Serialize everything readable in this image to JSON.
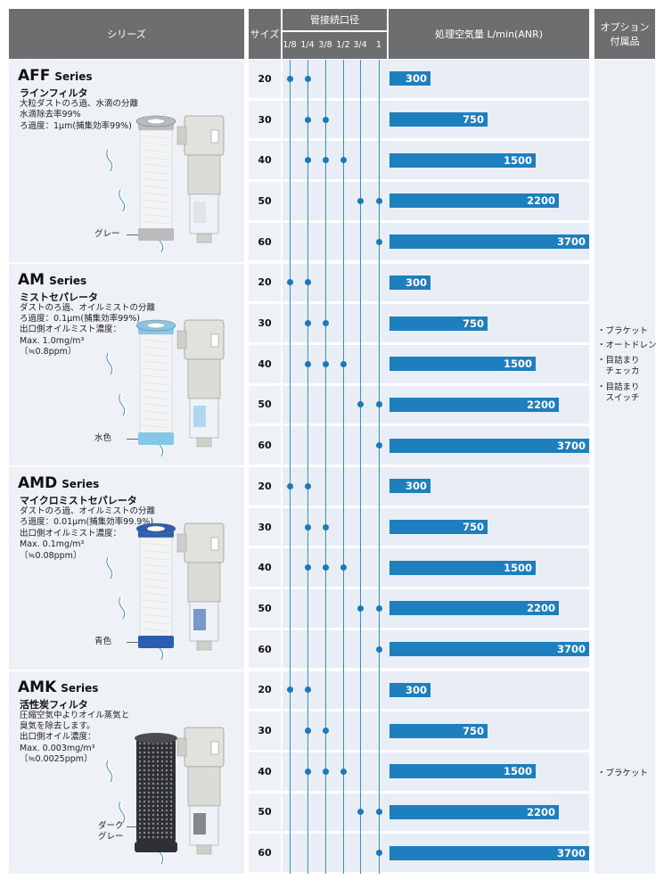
{
  "header": {
    "series": "シリーズ",
    "size": "サイズ",
    "pipe": "管接続口径",
    "pipe_sizes": [
      "1/8",
      "1/4",
      "3/8",
      "1/2",
      "3/4",
      "1"
    ],
    "flow": "処理空気量 L/min(ANR)",
    "option_line1": "オプション",
    "option_line2": "付属品"
  },
  "series": [
    {
      "name": "AFF",
      "suffix": "Series",
      "subtitle": "ラインフィルタ",
      "desc": [
        "大粒ダストのろ過、水滴の分離",
        "水滴除去率99%",
        "ろ過度：1μm(捕集効率99%)"
      ],
      "element_color_label": "グレー",
      "element_color": "#b9bbbd",
      "sizes": [
        {
          "size": "20",
          "ports": [
            "1/8",
            "1/4"
          ],
          "flow": "300"
        },
        {
          "size": "30",
          "ports": [
            "1/4",
            "3/8"
          ],
          "flow": "750"
        },
        {
          "size": "40",
          "ports": [
            "1/4",
            "3/8",
            "1/2"
          ],
          "flow": "1500"
        },
        {
          "size": "50",
          "ports": [
            "3/4",
            "1"
          ],
          "flow": "2200"
        },
        {
          "size": "60",
          "ports": [
            "1"
          ],
          "flow": "3700"
        }
      ]
    },
    {
      "name": "AM",
      "suffix": "Series",
      "subtitle": "ミストセパレータ",
      "desc": [
        "ダストのろ過、オイルミストの分離",
        "ろ過度：0.1μm(捕集効率99%)",
        "出口側オイルミスト濃度：",
        "Max. 1.0mg/m³",
        "〔≒0.8ppm〕"
      ],
      "element_color_label": "水色",
      "element_color": "#86c6e8",
      "sizes": [
        {
          "size": "20",
          "ports": [
            "1/8",
            "1/4"
          ],
          "flow": "300"
        },
        {
          "size": "30",
          "ports": [
            "1/4",
            "3/8"
          ],
          "flow": "750"
        },
        {
          "size": "40",
          "ports": [
            "1/4",
            "3/8",
            "1/2"
          ],
          "flow": "1500"
        },
        {
          "size": "50",
          "ports": [
            "3/4",
            "1"
          ],
          "flow": "2200"
        },
        {
          "size": "60",
          "ports": [
            "1"
          ],
          "flow": "3700"
        }
      ]
    },
    {
      "name": "AMD",
      "suffix": "Series",
      "subtitle": "マイクロミストセパレータ",
      "desc": [
        "ダストのろ過、オイルミストの分離",
        "ろ過度：0.01μm(捕集効率99.9%)",
        "出口側オイルミスト濃度：",
        "Max. 0.1mg/m³",
        "〔≒0.08ppm〕"
      ],
      "element_color_label": "青色",
      "element_color": "#2c5eb0",
      "sizes": [
        {
          "size": "20",
          "ports": [
            "1/8",
            "1/4"
          ],
          "flow": "300"
        },
        {
          "size": "30",
          "ports": [
            "1/4",
            "3/8"
          ],
          "flow": "750"
        },
        {
          "size": "40",
          "ports": [
            "1/4",
            "3/8",
            "1/2"
          ],
          "flow": "1500"
        },
        {
          "size": "50",
          "ports": [
            "3/4",
            "1"
          ],
          "flow": "2200"
        },
        {
          "size": "60",
          "ports": [
            "1"
          ],
          "flow": "3700"
        }
      ]
    },
    {
      "name": "AMK",
      "suffix": "Series",
      "subtitle": "活性炭フィルタ",
      "desc": [
        "圧縮空気中よりオイル蒸気と",
        "臭気を除去します。",
        "出口側オイル濃度：",
        "Max. 0.003mg/m³",
        "〔≒0.0025ppm〕"
      ],
      "element_color_label": "ダーク\nグレー",
      "element_color": "#3d3f42",
      "sizes": [
        {
          "size": "20",
          "ports": [
            "1/8",
            "1/4"
          ],
          "flow": "300"
        },
        {
          "size": "30",
          "ports": [
            "1/4",
            "3/8"
          ],
          "flow": "750"
        },
        {
          "size": "40",
          "ports": [
            "1/4",
            "3/8",
            "1/2"
          ],
          "flow": "1500"
        },
        {
          "size": "50",
          "ports": [
            "3/4",
            "1"
          ],
          "flow": "2200"
        },
        {
          "size": "60",
          "ports": [
            "1"
          ],
          "flow": "3700"
        }
      ]
    }
  ],
  "options_group1": [
    "・ブラケット",
    "・オートドレン",
    "・目詰まり\n　チェッカ",
    "・目詰まり\n　スイッチ"
  ],
  "options_group2": [
    "・ブラケット"
  ],
  "colors": {
    "header": "#6d6e70",
    "bar": "#1e7fbf",
    "dot": "#1a79b9",
    "cell": "#e9eef6"
  }
}
